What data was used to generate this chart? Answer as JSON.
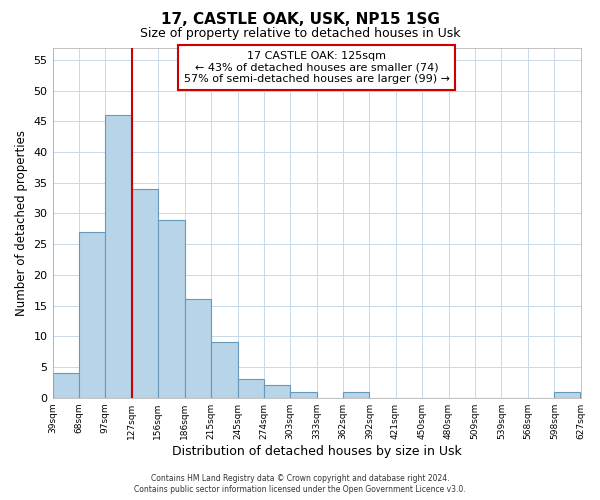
{
  "title": "17, CASTLE OAK, USK, NP15 1SG",
  "subtitle": "Size of property relative to detached houses in Usk",
  "xlabel": "Distribution of detached houses by size in Usk",
  "ylabel": "Number of detached properties",
  "bar_color": "#b8d4e8",
  "bar_edge_color": "#6699bb",
  "background_color": "#ffffff",
  "grid_color": "#c8d8e8",
  "vline_x": 127,
  "vline_color": "#cc0000",
  "bin_edges": [
    39,
    68,
    97,
    127,
    156,
    186,
    215,
    245,
    274,
    303,
    333,
    362,
    392,
    421,
    450,
    480,
    509,
    539,
    568,
    598,
    627
  ],
  "bin_labels": [
    "39sqm",
    "68sqm",
    "97sqm",
    "127sqm",
    "156sqm",
    "186sqm",
    "215sqm",
    "245sqm",
    "274sqm",
    "303sqm",
    "333sqm",
    "362sqm",
    "392sqm",
    "421sqm",
    "450sqm",
    "480sqm",
    "509sqm",
    "539sqm",
    "568sqm",
    "598sqm",
    "627sqm"
  ],
  "bar_heights": [
    4,
    27,
    46,
    34,
    29,
    16,
    9,
    3,
    2,
    1,
    0,
    1,
    0,
    0,
    0,
    0,
    0,
    0,
    0,
    1
  ],
  "ylim": [
    0,
    57
  ],
  "yticks": [
    0,
    5,
    10,
    15,
    20,
    25,
    30,
    35,
    40,
    45,
    50,
    55
  ],
  "annotation_title": "17 CASTLE OAK: 125sqm",
  "annotation_line1": "← 43% of detached houses are smaller (74)",
  "annotation_line2": "57% of semi-detached houses are larger (99) →",
  "annotation_box_color": "#ffffff",
  "annotation_box_edge_color": "#cc0000",
  "footer_line1": "Contains HM Land Registry data © Crown copyright and database right 2024.",
  "footer_line2": "Contains public sector information licensed under the Open Government Licence v3.0."
}
